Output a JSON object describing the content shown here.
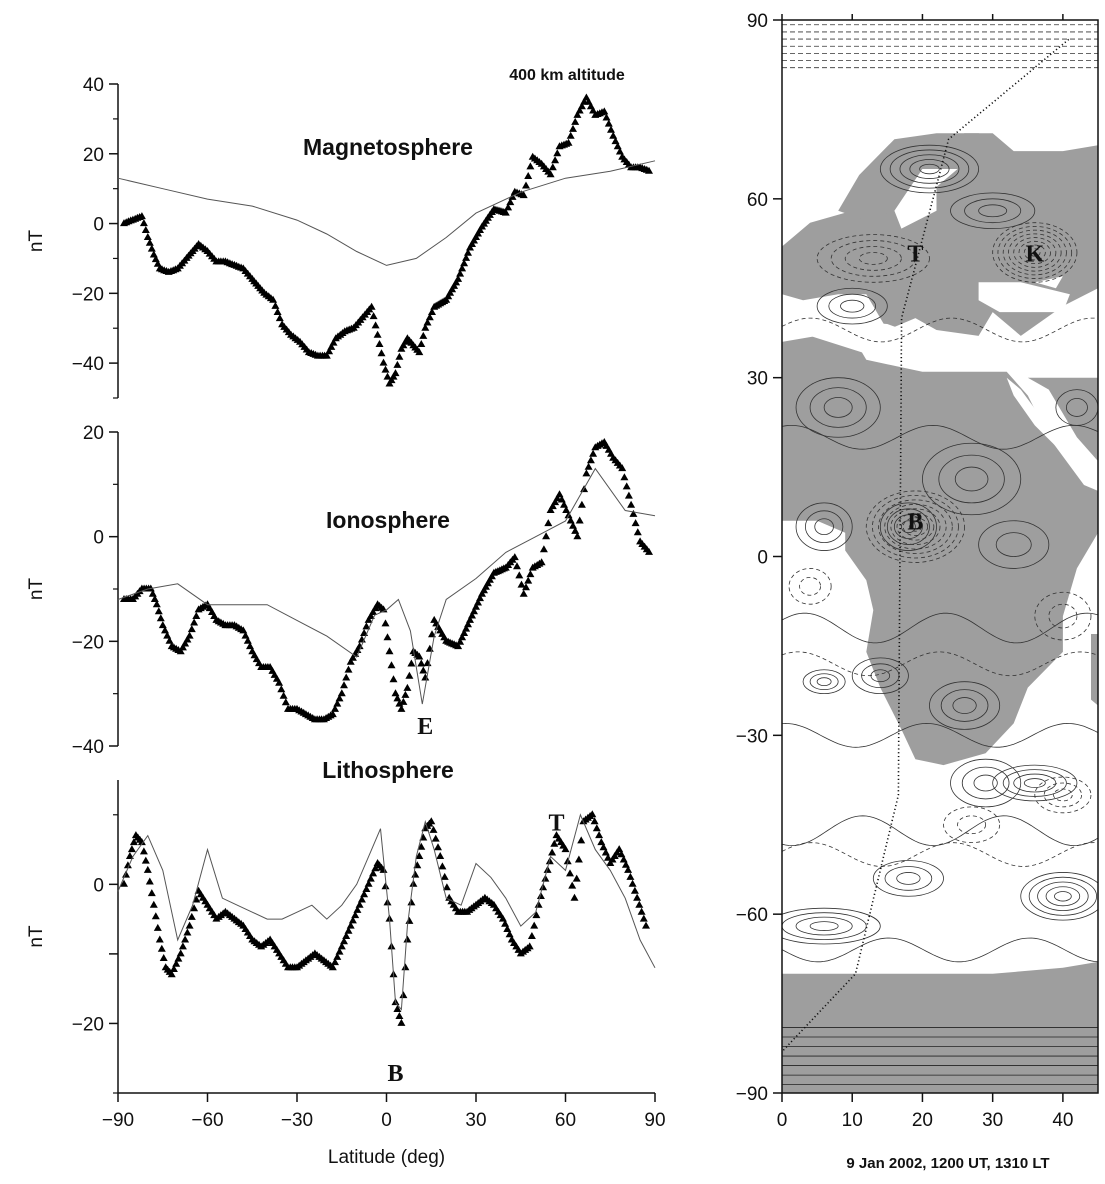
{
  "chart_data": [
    {
      "type": "line",
      "title": "Magnetosphere",
      "annotation": "400 km altitude",
      "ylabel": "nT",
      "ylim": [
        -50,
        40
      ],
      "xlim": [
        -90,
        90
      ],
      "yticks": [
        40,
        20,
        0,
        -20,
        -40
      ],
      "series": [
        {
          "style": "triangles",
          "x": [
            -88,
            -85,
            -82,
            -80,
            -78,
            -76,
            -73,
            -70,
            -67,
            -63,
            -60,
            -57,
            -54,
            -51,
            -48,
            -45,
            -41,
            -38,
            -35,
            -32,
            -29,
            -26,
            -23,
            -20,
            -17,
            -14,
            -11,
            -8,
            -5,
            -3,
            -1,
            1,
            3,
            5,
            7,
            9,
            11,
            13,
            16,
            20,
            24,
            28,
            32,
            36,
            40,
            43,
            46,
            49,
            52,
            55,
            58,
            61,
            64,
            67,
            70,
            73,
            76,
            79,
            82,
            85,
            88
          ],
          "values": [
            0,
            1,
            2,
            -4,
            -9,
            -13,
            -14,
            -13,
            -10,
            -6,
            -8,
            -11,
            -11,
            -12,
            -13,
            -16,
            -20,
            -22,
            -29,
            -32,
            -34,
            -37,
            -38,
            -38,
            -33,
            -31,
            -30,
            -27,
            -24,
            -32,
            -40,
            -46,
            -43,
            -36,
            -33,
            -35,
            -37,
            -30,
            -24,
            -22,
            -16,
            -7,
            -1,
            4,
            3,
            9,
            8,
            19,
            17,
            14,
            22,
            23,
            31,
            36,
            31,
            32,
            25,
            19,
            16,
            16,
            15
          ]
        },
        {
          "style": "thin-line",
          "x": [
            -90,
            -75,
            -60,
            -45,
            -30,
            -20,
            -10,
            0,
            10,
            20,
            30,
            45,
            60,
            75,
            90
          ],
          "values": [
            13,
            10,
            7,
            5,
            1,
            -3,
            -8,
            -12,
            -10,
            -4,
            3,
            9,
            13,
            15,
            18
          ]
        }
      ]
    },
    {
      "type": "line",
      "title": "Ionosphere",
      "ylabel": "nT",
      "ylim": [
        -40,
        20
      ],
      "xlim": [
        -90,
        90
      ],
      "yticks": [
        20,
        0,
        -20,
        -40
      ],
      "annotations": [
        {
          "text": "E",
          "x": 13,
          "y": -36
        }
      ],
      "series": [
        {
          "style": "triangles",
          "x": [
            -88,
            -85,
            -82,
            -79,
            -77,
            -75,
            -72,
            -69,
            -66,
            -63,
            -60,
            -57,
            -54,
            -51,
            -48,
            -45,
            -42,
            -39,
            -36,
            -33,
            -30,
            -27,
            -24,
            -21,
            -18,
            -15,
            -12,
            -9,
            -6,
            -3,
            -1,
            1,
            3,
            5,
            7,
            9,
            11,
            13,
            16,
            20,
            24,
            28,
            32,
            36,
            40,
            43,
            46,
            49,
            52,
            55,
            58,
            61,
            64,
            67,
            70,
            73,
            76,
            79,
            82,
            85,
            88
          ],
          "values": [
            -12,
            -12,
            -10,
            -10,
            -13,
            -17,
            -21,
            -22,
            -19,
            -14,
            -13,
            -16,
            -17,
            -17,
            -18,
            -22,
            -25,
            -25,
            -28,
            -33,
            -33,
            -34,
            -35,
            -35,
            -34,
            -30,
            -24,
            -21,
            -16,
            -13,
            -14,
            -22,
            -30,
            -33,
            -29,
            -22,
            -23,
            -27,
            -16,
            -20,
            -21,
            -16,
            -11,
            -7,
            -6,
            -4,
            -11,
            -6,
            -5,
            5,
            8,
            4,
            0,
            12,
            17,
            18,
            15,
            13,
            6,
            -1,
            -3
          ]
        },
        {
          "style": "thin-line",
          "x": [
            -90,
            -80,
            -70,
            -60,
            -50,
            -40,
            -30,
            -20,
            -10,
            -4,
            0,
            4,
            8,
            12,
            16,
            20,
            30,
            40,
            50,
            60,
            70,
            80,
            90
          ],
          "values": [
            -12,
            -10,
            -9,
            -13,
            -13,
            -13,
            -16,
            -19,
            -23,
            -15,
            -14,
            -12,
            -18,
            -32,
            -19,
            -12,
            -8,
            -3,
            0,
            3,
            13,
            5,
            4
          ]
        }
      ]
    },
    {
      "type": "line",
      "title": "Lithosphere",
      "ylabel": "nT",
      "ylim": [
        -30,
        15
      ],
      "xlim": [
        -90,
        90
      ],
      "yticks": [
        0,
        -10,
        -20
      ],
      "ytick_labels": [
        "0",
        "",
        "-20"
      ],
      "xticks": [
        -90,
        -60,
        -30,
        0,
        30,
        60,
        90
      ],
      "xlabel": "Latitude (deg)",
      "annotations": [
        {
          "text": "B",
          "x": 3,
          "y": -27
        },
        {
          "text": "T",
          "x": 57,
          "y": 9
        }
      ],
      "series": [
        {
          "style": "triangles",
          "x": [
            -88,
            -86,
            -84,
            -82,
            -80,
            -78,
            -76,
            -74,
            -72,
            -69,
            -66,
            -63,
            -60,
            -57,
            -54,
            -51,
            -48,
            -45,
            -42,
            -39,
            -36,
            -33,
            -30,
            -27,
            -24,
            -21,
            -18,
            -15,
            -12,
            -9,
            -6,
            -3,
            -1,
            1,
            3,
            5,
            7,
            9,
            11,
            13,
            15,
            18,
            21,
            24,
            27,
            30,
            33,
            36,
            39,
            42,
            45,
            48,
            51,
            54,
            57,
            60,
            63,
            66,
            69,
            72,
            75,
            78,
            81,
            84,
            87
          ],
          "values": [
            0,
            4,
            7,
            6,
            2,
            -3,
            -8,
            -12,
            -13,
            -10,
            -6,
            -1,
            -3,
            -5,
            -4,
            -5,
            -6,
            -8,
            -9,
            -8,
            -10,
            -12,
            -12,
            -11,
            -10,
            -11,
            -12,
            -9,
            -6,
            -3,
            0,
            3,
            2,
            -5,
            -17,
            -20,
            -8,
            0,
            4,
            8,
            9,
            4,
            -2,
            -4,
            -4,
            -3,
            -2,
            -3,
            -5,
            -8,
            -10,
            -9,
            -3,
            2,
            7,
            5,
            -2,
            9,
            10,
            6,
            3,
            5,
            2,
            -2,
            -6
          ]
        },
        {
          "style": "thin-line",
          "x": [
            -90,
            -85,
            -80,
            -75,
            -70,
            -65,
            -60,
            -55,
            -50,
            -45,
            -40,
            -35,
            -30,
            -25,
            -20,
            -15,
            -10,
            -5,
            -2,
            1,
            3,
            5,
            7,
            10,
            13,
            16,
            20,
            25,
            30,
            35,
            40,
            45,
            50,
            55,
            60,
            65,
            70,
            75,
            80,
            85,
            90
          ],
          "values": [
            -1,
            4,
            7,
            2,
            -8,
            -3,
            5,
            -2,
            -3,
            -4,
            -5,
            -5,
            -4,
            -3,
            -5,
            -3,
            0,
            5,
            8,
            -5,
            -17,
            -18,
            -6,
            4,
            9,
            5,
            -2,
            -3,
            3,
            1,
            -2,
            -6,
            -4,
            4,
            2,
            10,
            5,
            2,
            -2,
            -8,
            -12
          ]
        }
      ]
    },
    {
      "type": "contour-map",
      "xlim": [
        0,
        45
      ],
      "ylim": [
        -90,
        90
      ],
      "xticks": [
        0,
        10,
        20,
        30,
        40
      ],
      "yticks": [
        90,
        60,
        30,
        0,
        -30,
        -60,
        -90
      ],
      "caption": "9 Jan 2002, 1200 UT, 1310 LT",
      "labels": [
        {
          "text": "T",
          "lon": 19,
          "lat": 51
        },
        {
          "text": "K",
          "lon": 36,
          "lat": 51
        },
        {
          "text": "B",
          "lon": 19,
          "lat": 6
        }
      ],
      "colors": {
        "land": "#9e9e9e",
        "contour": "#333333"
      }
    }
  ]
}
